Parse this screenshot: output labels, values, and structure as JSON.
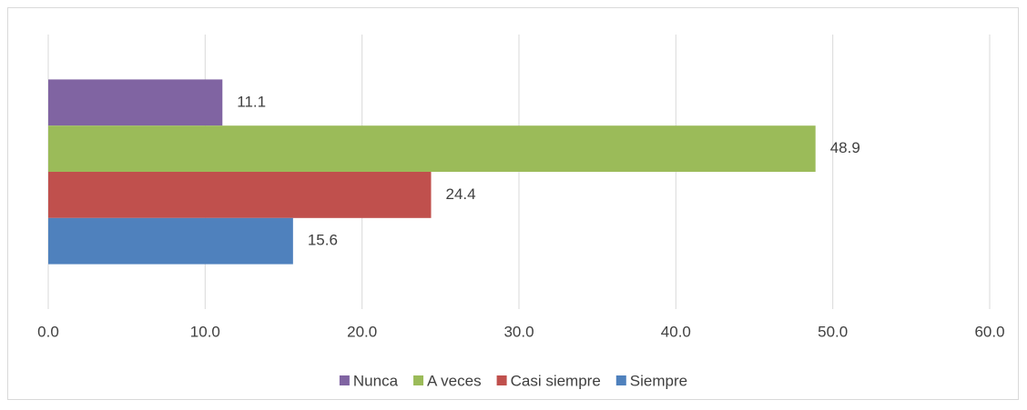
{
  "chart_data": {
    "type": "bar",
    "orientation": "horizontal",
    "categories": [
      null
    ],
    "series": [
      {
        "name": "Nunca",
        "color": "#8064a2",
        "values": [
          11.1
        ]
      },
      {
        "name": "A veces",
        "color": "#9bbb59",
        "values": [
          48.9
        ]
      },
      {
        "name": "Casi siempre",
        "color": "#c0504d",
        "values": [
          24.4
        ]
      },
      {
        "name": "Siempre",
        "color": "#4f81bd",
        "values": [
          15.6
        ]
      }
    ],
    "xlim": [
      0,
      60
    ],
    "xticks": [
      {
        "value": 0,
        "label": "0.0"
      },
      {
        "value": 10,
        "label": "10.0"
      },
      {
        "value": 20,
        "label": "20.0"
      },
      {
        "value": 30,
        "label": "30.0"
      },
      {
        "value": 40,
        "label": "40.0"
      },
      {
        "value": 50,
        "label": "50.0"
      },
      {
        "value": 60,
        "label": "60.0"
      }
    ],
    "grid": true,
    "legend": "bottom"
  }
}
